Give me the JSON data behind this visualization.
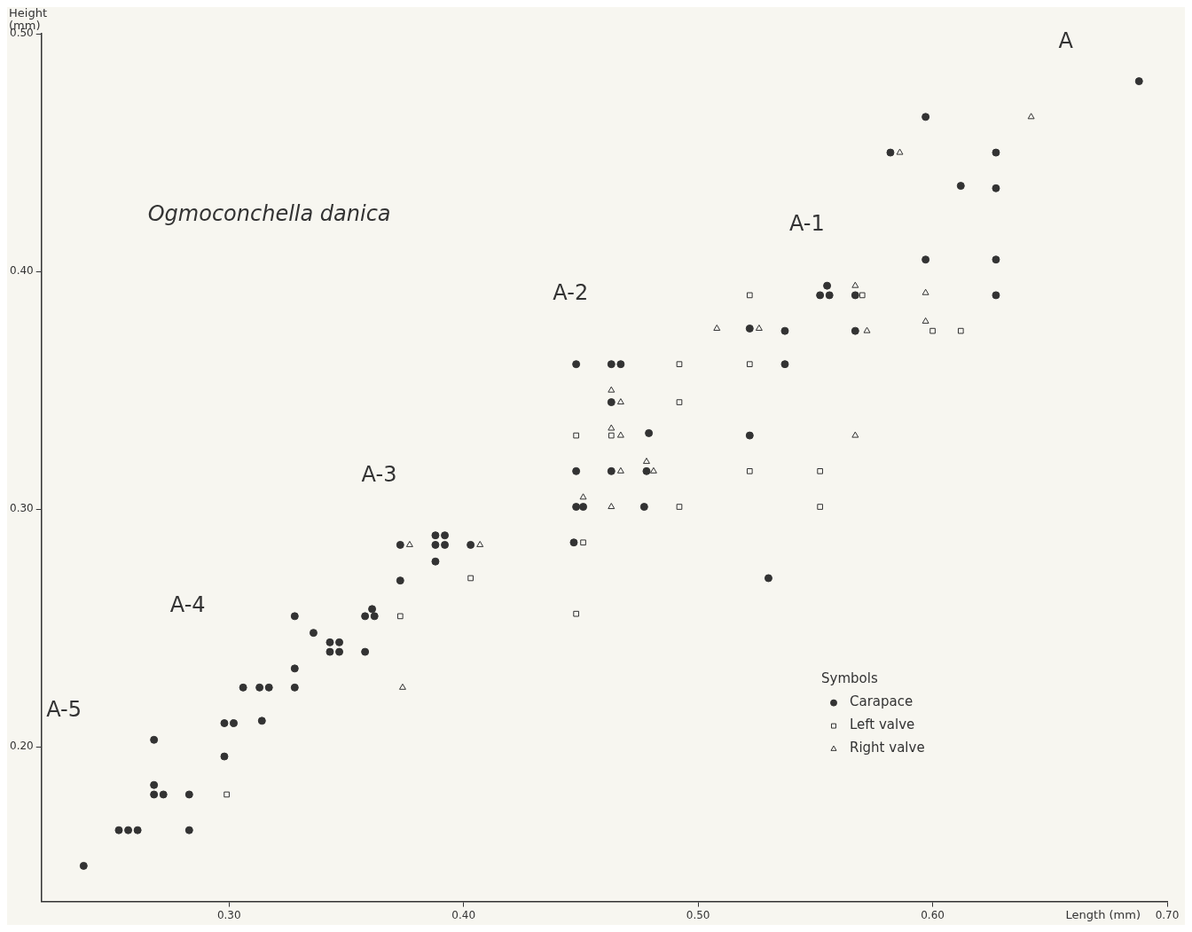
{
  "chart_data": {
    "type": "scatter",
    "title": "Ogmoconchella danica",
    "xlabel": "Length (mm)",
    "ylabel": "Height\n(mm)",
    "legend_title": "Symbols",
    "legend": "bottom right",
    "grid": false,
    "xlim": [
      0.22,
      0.7
    ],
    "ylim": [
      0.135,
      0.5
    ],
    "xticks": [
      {
        "value": 0.3,
        "label": "0.30"
      },
      {
        "value": 0.4,
        "label": "0.40"
      },
      {
        "value": 0.5,
        "label": "0.50"
      },
      {
        "value": 0.6,
        "label": "0.60"
      },
      {
        "value": 0.7,
        "label": "0.70"
      }
    ],
    "yticks": [
      {
        "value": 0.2,
        "label": "0.20"
      },
      {
        "value": 0.3,
        "label": "0.30"
      },
      {
        "value": 0.4,
        "label": "0.40"
      },
      {
        "value": 0.5,
        "label": "0.50"
      }
    ],
    "annotations": [
      "A",
      "A-1",
      "A-2",
      "A-3",
      "A-4",
      "A-5"
    ],
    "series": [
      {
        "name": "Carapace",
        "color": "#333333",
        "marker": "circle",
        "x": [
          0.688,
          0.597,
          0.582,
          0.627,
          0.612,
          0.627,
          0.597,
          0.627,
          0.555,
          0.552,
          0.556,
          0.567,
          0.627,
          0.522,
          0.537,
          0.567,
          0.448,
          0.463,
          0.467,
          0.537,
          0.463,
          0.479,
          0.522,
          0.448,
          0.463,
          0.478,
          0.448,
          0.451,
          0.477,
          0.447,
          0.53,
          0.373,
          0.373,
          0.388,
          0.392,
          0.388,
          0.392,
          0.388,
          0.403,
          0.358,
          0.362,
          0.361,
          0.328,
          0.336,
          0.343,
          0.347,
          0.343,
          0.347,
          0.358,
          0.328,
          0.306,
          0.313,
          0.317,
          0.328,
          0.298,
          0.302,
          0.314,
          0.298,
          0.268,
          0.268,
          0.268,
          0.272,
          0.283,
          0.253,
          0.257,
          0.261,
          0.283,
          0.238
        ],
        "values": [
          0.48,
          0.465,
          0.45,
          0.45,
          0.436,
          0.435,
          0.405,
          0.405,
          0.394,
          0.39,
          0.39,
          0.39,
          0.39,
          0.376,
          0.375,
          0.375,
          0.361,
          0.361,
          0.361,
          0.361,
          0.345,
          0.332,
          0.331,
          0.316,
          0.316,
          0.316,
          0.301,
          0.301,
          0.301,
          0.286,
          0.271,
          0.285,
          0.27,
          0.289,
          0.289,
          0.285,
          0.285,
          0.278,
          0.285,
          0.255,
          0.255,
          0.258,
          0.255,
          0.248,
          0.244,
          0.244,
          0.24,
          0.24,
          0.24,
          0.233,
          0.225,
          0.225,
          0.225,
          0.225,
          0.21,
          0.21,
          0.211,
          0.196,
          0.203,
          0.184,
          0.18,
          0.18,
          0.18,
          0.165,
          0.165,
          0.165,
          0.165,
          0.15
        ]
      },
      {
        "name": "Left valve",
        "color": "#333333",
        "marker": "square",
        "x": [
          0.522,
          0.57,
          0.6,
          0.612,
          0.522,
          0.492,
          0.492,
          0.448,
          0.463,
          0.522,
          0.552,
          0.492,
          0.552,
          0.451,
          0.403,
          0.373,
          0.448,
          0.299
        ],
        "values": [
          0.39,
          0.39,
          0.375,
          0.375,
          0.361,
          0.361,
          0.345,
          0.331,
          0.331,
          0.316,
          0.316,
          0.301,
          0.301,
          0.286,
          0.271,
          0.255,
          0.256,
          0.18
        ]
      },
      {
        "name": "Right valve",
        "color": "#333333",
        "marker": "triangle",
        "x": [
          0.642,
          0.586,
          0.567,
          0.597,
          0.597,
          0.508,
          0.526,
          0.572,
          0.463,
          0.467,
          0.463,
          0.467,
          0.478,
          0.467,
          0.481,
          0.567,
          0.451,
          0.463,
          0.377,
          0.407,
          0.374
        ],
        "values": [
          0.465,
          0.45,
          0.394,
          0.391,
          0.379,
          0.376,
          0.376,
          0.375,
          0.35,
          0.345,
          0.334,
          0.331,
          0.32,
          0.316,
          0.316,
          0.331,
          0.305,
          0.301,
          0.285,
          0.285,
          0.225
        ]
      }
    ]
  }
}
